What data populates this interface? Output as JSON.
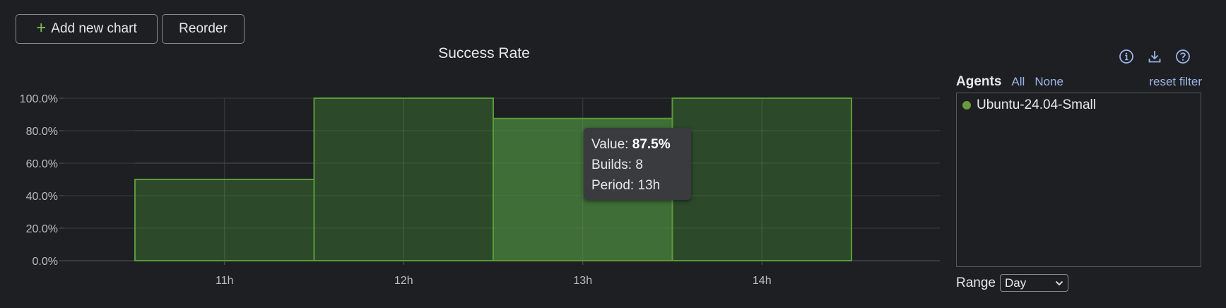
{
  "toolbar": {
    "add_label": "Add new chart",
    "reorder_label": "Reorder"
  },
  "icons": [
    "plus-icon",
    "info-icon",
    "download-icon",
    "help-icon",
    "chevron-down-icon"
  ],
  "chart_data": {
    "type": "bar",
    "title": "Success Rate",
    "xlabel": "",
    "ylabel": "",
    "categories": [
      "11h",
      "12h",
      "13h",
      "14h"
    ],
    "series": [
      {
        "name": "Ubuntu-24.04-Small",
        "values": [
          50.0,
          100.0,
          87.5,
          100.0
        ],
        "color": "#5a9a3a"
      }
    ],
    "ylim": [
      0,
      100
    ],
    "yticks": [
      "0.0%",
      "20.0%",
      "40.0%",
      "60.0%",
      "80.0%",
      "100.0%"
    ],
    "grid": true,
    "highlighted_index": 2
  },
  "tooltip": {
    "value_label": "Value:",
    "value": "87.5%",
    "builds_label": "Builds:",
    "builds": "8",
    "period_label": "Period:",
    "period": "13h"
  },
  "agents": {
    "title": "Agents",
    "all_label": "All",
    "none_label": "None",
    "reset_label": "reset filter",
    "items": [
      {
        "label": "Ubuntu-24.04-Small",
        "color": "#6a9a3e"
      }
    ]
  },
  "range": {
    "label": "Range",
    "selected": "Day"
  },
  "colors": {
    "background": "#1e1f22",
    "bar_fill": "#2c4a2a",
    "bar_highlight": "#3f6e37",
    "bar_stroke": "#5a9a3a",
    "link": "#9cb4e6"
  }
}
